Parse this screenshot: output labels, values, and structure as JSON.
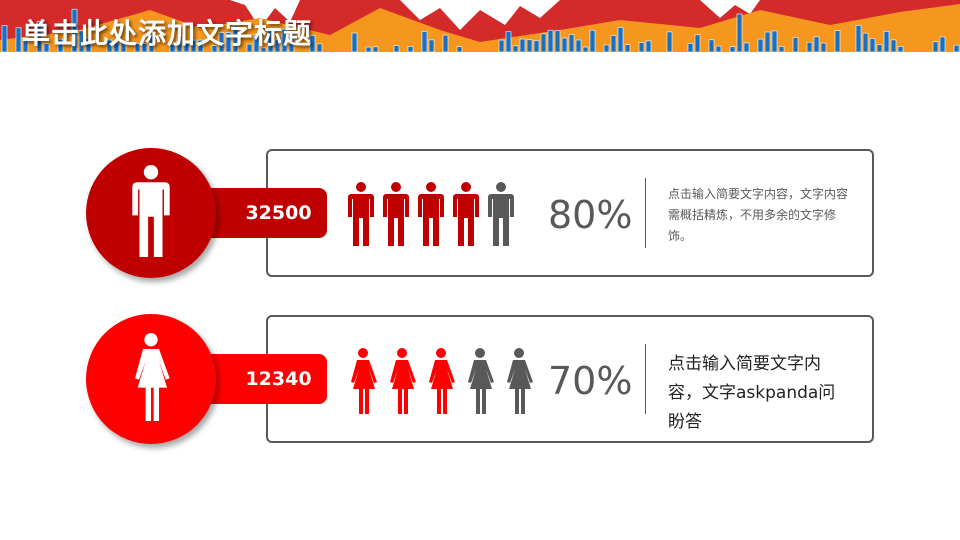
{
  "title": "单击此处添加文字标题",
  "colors": {
    "dark_red": "#c00000",
    "red": "#ff0000",
    "gray": "#595959",
    "orange": "#f5961e",
    "blue": "#1a6fbf"
  },
  "rows": [
    {
      "gender": "male",
      "icon": "male-person-icon",
      "value": "32500",
      "percent_label": "80%",
      "filled": 4,
      "total": 5,
      "color": "#c00000",
      "description": "点击输入简要文字内容，文字内容需概括精炼，不用多余的文字修饰。"
    },
    {
      "gender": "female",
      "icon": "female-person-icon",
      "value": "12340",
      "percent_label": "70%",
      "filled": 3,
      "total": 5,
      "color": "#ff0000",
      "description": "点击输入简要文字内容，文字askpanda问盼答"
    }
  ]
}
